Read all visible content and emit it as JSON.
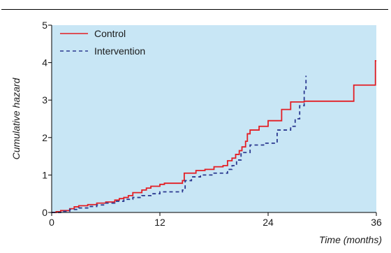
{
  "chart_data": {
    "type": "line",
    "step": true,
    "xlabel": "Time (months)",
    "ylabel": "Cumulative hazard",
    "xlim": [
      0,
      36
    ],
    "ylim": [
      0,
      5
    ],
    "xticks": [
      0,
      12,
      24,
      36
    ],
    "yticks": [
      0,
      1,
      2,
      3,
      4,
      5
    ],
    "grid": false,
    "legend_position": "top-left",
    "colors": {
      "plot_background": "#c8e6f5",
      "rule": "#000000"
    },
    "series": [
      {
        "name": "Control",
        "color": "#e31e24",
        "line_style": "solid",
        "points": [
          [
            0,
            0
          ],
          [
            0.5,
            0.02
          ],
          [
            1,
            0.05
          ],
          [
            2,
            0.1
          ],
          [
            2.5,
            0.15
          ],
          [
            3,
            0.18
          ],
          [
            4,
            0.21
          ],
          [
            5,
            0.25
          ],
          [
            6,
            0.28
          ],
          [
            7,
            0.33
          ],
          [
            7.5,
            0.37
          ],
          [
            8,
            0.4
          ],
          [
            8.5,
            0.45
          ],
          [
            9,
            0.53
          ],
          [
            10,
            0.6
          ],
          [
            10.5,
            0.65
          ],
          [
            11,
            0.7
          ],
          [
            12,
            0.75
          ],
          [
            12.5,
            0.78
          ],
          [
            14.5,
            0.85
          ],
          [
            14.7,
            1.05
          ],
          [
            16,
            1.12
          ],
          [
            17,
            1.15
          ],
          [
            18,
            1.22
          ],
          [
            19,
            1.25
          ],
          [
            19.5,
            1.38
          ],
          [
            20,
            1.45
          ],
          [
            20.4,
            1.55
          ],
          [
            20.8,
            1.65
          ],
          [
            21.1,
            1.75
          ],
          [
            21.5,
            1.9
          ],
          [
            21.7,
            2.1
          ],
          [
            22,
            2.2
          ],
          [
            23,
            2.3
          ],
          [
            24,
            2.45
          ],
          [
            25.5,
            2.75
          ],
          [
            26.5,
            2.95
          ],
          [
            28,
            2.97
          ],
          [
            33.5,
            3.4
          ],
          [
            35.9,
            4.05
          ]
        ],
        "x_end": 36
      },
      {
        "name": "Intervention",
        "color": "#2b3990",
        "line_style": "dashed",
        "points": [
          [
            0,
            0
          ],
          [
            1,
            0.03
          ],
          [
            2,
            0.08
          ],
          [
            3,
            0.12
          ],
          [
            4,
            0.16
          ],
          [
            5,
            0.2
          ],
          [
            6,
            0.25
          ],
          [
            7,
            0.3
          ],
          [
            8,
            0.35
          ],
          [
            9,
            0.4
          ],
          [
            10,
            0.45
          ],
          [
            11,
            0.5
          ],
          [
            12,
            0.55
          ],
          [
            14.5,
            0.6
          ],
          [
            14.8,
            0.85
          ],
          [
            15.5,
            0.95
          ],
          [
            16.5,
            1.0
          ],
          [
            18,
            1.05
          ],
          [
            19.5,
            1.15
          ],
          [
            20,
            1.25
          ],
          [
            20.5,
            1.4
          ],
          [
            21,
            1.6
          ],
          [
            22,
            1.8
          ],
          [
            23.5,
            1.85
          ],
          [
            25,
            2.2
          ],
          [
            26.5,
            2.3
          ],
          [
            27,
            2.5
          ],
          [
            27.5,
            2.85
          ],
          [
            28,
            3.3
          ],
          [
            28.2,
            3.65
          ]
        ],
        "x_end": 28.2
      }
    ]
  }
}
